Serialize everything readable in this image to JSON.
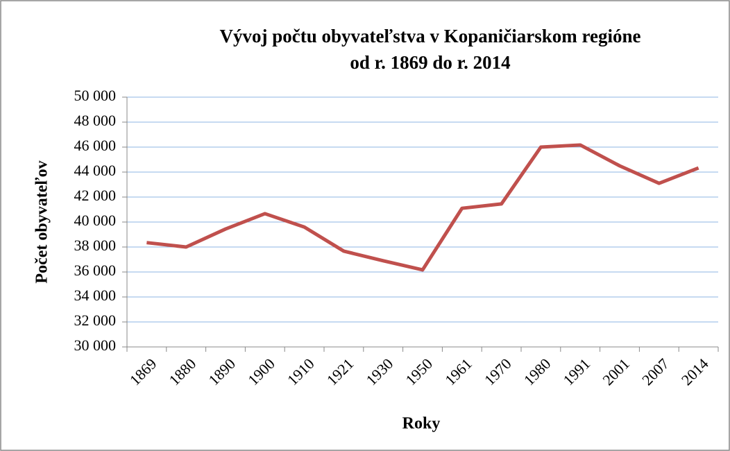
{
  "chart_data": {
    "type": "line",
    "title": "Vývoj počtu obyvateľstva v Kopaničiarskom regióne od r. 1869 do r. 2014",
    "x_label": "Roky",
    "y_label": "Počet obyvateľov",
    "categories": [
      "1869",
      "1880",
      "1890",
      "1900",
      "1910",
      "1921",
      "1930",
      "1950",
      "1961",
      "1970",
      "1980",
      "1991",
      "2001",
      "2007",
      "2014"
    ],
    "series": [
      {
        "color": "#c0504d",
        "values": [
          38350,
          38000,
          39440,
          40670,
          39600,
          37670,
          36900,
          36170,
          41100,
          41450,
          46000,
          46170,
          44500,
          43100,
          44330
        ]
      }
    ],
    "ylim": [
      30000,
      50000
    ],
    "yticks": [
      {
        "value": 30000,
        "label": "30 000"
      },
      {
        "value": 32000,
        "label": "32 000"
      },
      {
        "value": 34000,
        "label": "34 000"
      },
      {
        "value": 36000,
        "label": "36 000"
      },
      {
        "value": 38000,
        "label": "38 000"
      },
      {
        "value": 40000,
        "label": "40 000"
      },
      {
        "value": 42000,
        "label": "42 000"
      },
      {
        "value": 44000,
        "label": "44 000"
      },
      {
        "value": 46000,
        "label": "46 000"
      },
      {
        "value": 48000,
        "label": "48 000"
      },
      {
        "value": 50000,
        "label": "50 000"
      }
    ],
    "grid": true
  }
}
